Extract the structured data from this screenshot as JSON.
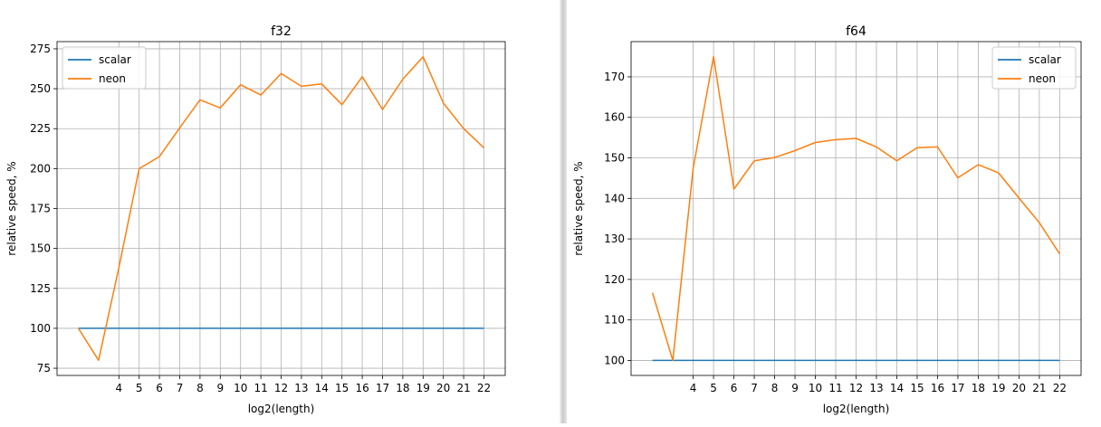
{
  "chart_data": [
    {
      "type": "line",
      "title": "f32",
      "xlabel": "log2(length)",
      "ylabel": "relative speed, %",
      "xlim": [
        0.95,
        23.05
      ],
      "ylim": [
        70.5,
        279.5
      ],
      "xticks": [
        4,
        5,
        6,
        7,
        8,
        9,
        10,
        11,
        12,
        13,
        14,
        15,
        16,
        17,
        18,
        19,
        20,
        21,
        22
      ],
      "yticks": [
        75,
        100,
        125,
        150,
        175,
        200,
        225,
        250,
        275
      ],
      "grid": true,
      "legend_position": "top-left",
      "series": [
        {
          "name": "scalar",
          "color": "#1f77b4",
          "x": [
            2,
            3,
            4,
            5,
            6,
            7,
            8,
            9,
            10,
            11,
            12,
            13,
            14,
            15,
            16,
            17,
            18,
            19,
            20,
            21,
            22
          ],
          "values": [
            100,
            100,
            100,
            100,
            100,
            100,
            100,
            100,
            100,
            100,
            100,
            100,
            100,
            100,
            100,
            100,
            100,
            100,
            100,
            100,
            100
          ]
        },
        {
          "name": "neon",
          "color": "#ff7f0e",
          "x": [
            2,
            3,
            4,
            5,
            6,
            7,
            8,
            9,
            10,
            11,
            12,
            13,
            14,
            15,
            16,
            17,
            18,
            19,
            20,
            21,
            22
          ],
          "values": [
            100,
            80,
            138,
            200,
            207.5,
            225.5,
            243,
            238,
            252.5,
            246,
            259.5,
            251.5,
            253,
            240,
            257.5,
            237,
            256,
            270,
            241,
            225,
            213
          ]
        }
      ]
    },
    {
      "type": "line",
      "title": "f64",
      "xlabel": "log2(length)",
      "ylabel": "relative speed, %",
      "xlim": [
        0.95,
        23.05
      ],
      "ylim": [
        96.3,
        178.7
      ],
      "xticks": [
        4,
        5,
        6,
        7,
        8,
        9,
        10,
        11,
        12,
        13,
        14,
        15,
        16,
        17,
        18,
        19,
        20,
        21,
        22
      ],
      "yticks": [
        100,
        110,
        120,
        130,
        140,
        150,
        160,
        170
      ],
      "grid": true,
      "legend_position": "top-right",
      "series": [
        {
          "name": "scalar",
          "color": "#1f77b4",
          "x": [
            2,
            3,
            4,
            5,
            6,
            7,
            8,
            9,
            10,
            11,
            12,
            13,
            14,
            15,
            16,
            17,
            18,
            19,
            20,
            21,
            22
          ],
          "values": [
            100,
            100,
            100,
            100,
            100,
            100,
            100,
            100,
            100,
            100,
            100,
            100,
            100,
            100,
            100,
            100,
            100,
            100,
            100,
            100,
            100
          ]
        },
        {
          "name": "neon",
          "color": "#ff7f0e",
          "x": [
            2,
            3,
            4,
            5,
            6,
            7,
            8,
            9,
            10,
            11,
            12,
            13,
            14,
            15,
            16,
            17,
            18,
            19,
            20,
            21,
            22
          ],
          "values": [
            116.7,
            100,
            147.5,
            175,
            142.3,
            149.3,
            150.1,
            151.8,
            153.8,
            154.5,
            154.8,
            152.7,
            149.3,
            152.5,
            152.7,
            145.1,
            148.3,
            146.3,
            140.1,
            134,
            126.3
          ]
        }
      ]
    }
  ]
}
